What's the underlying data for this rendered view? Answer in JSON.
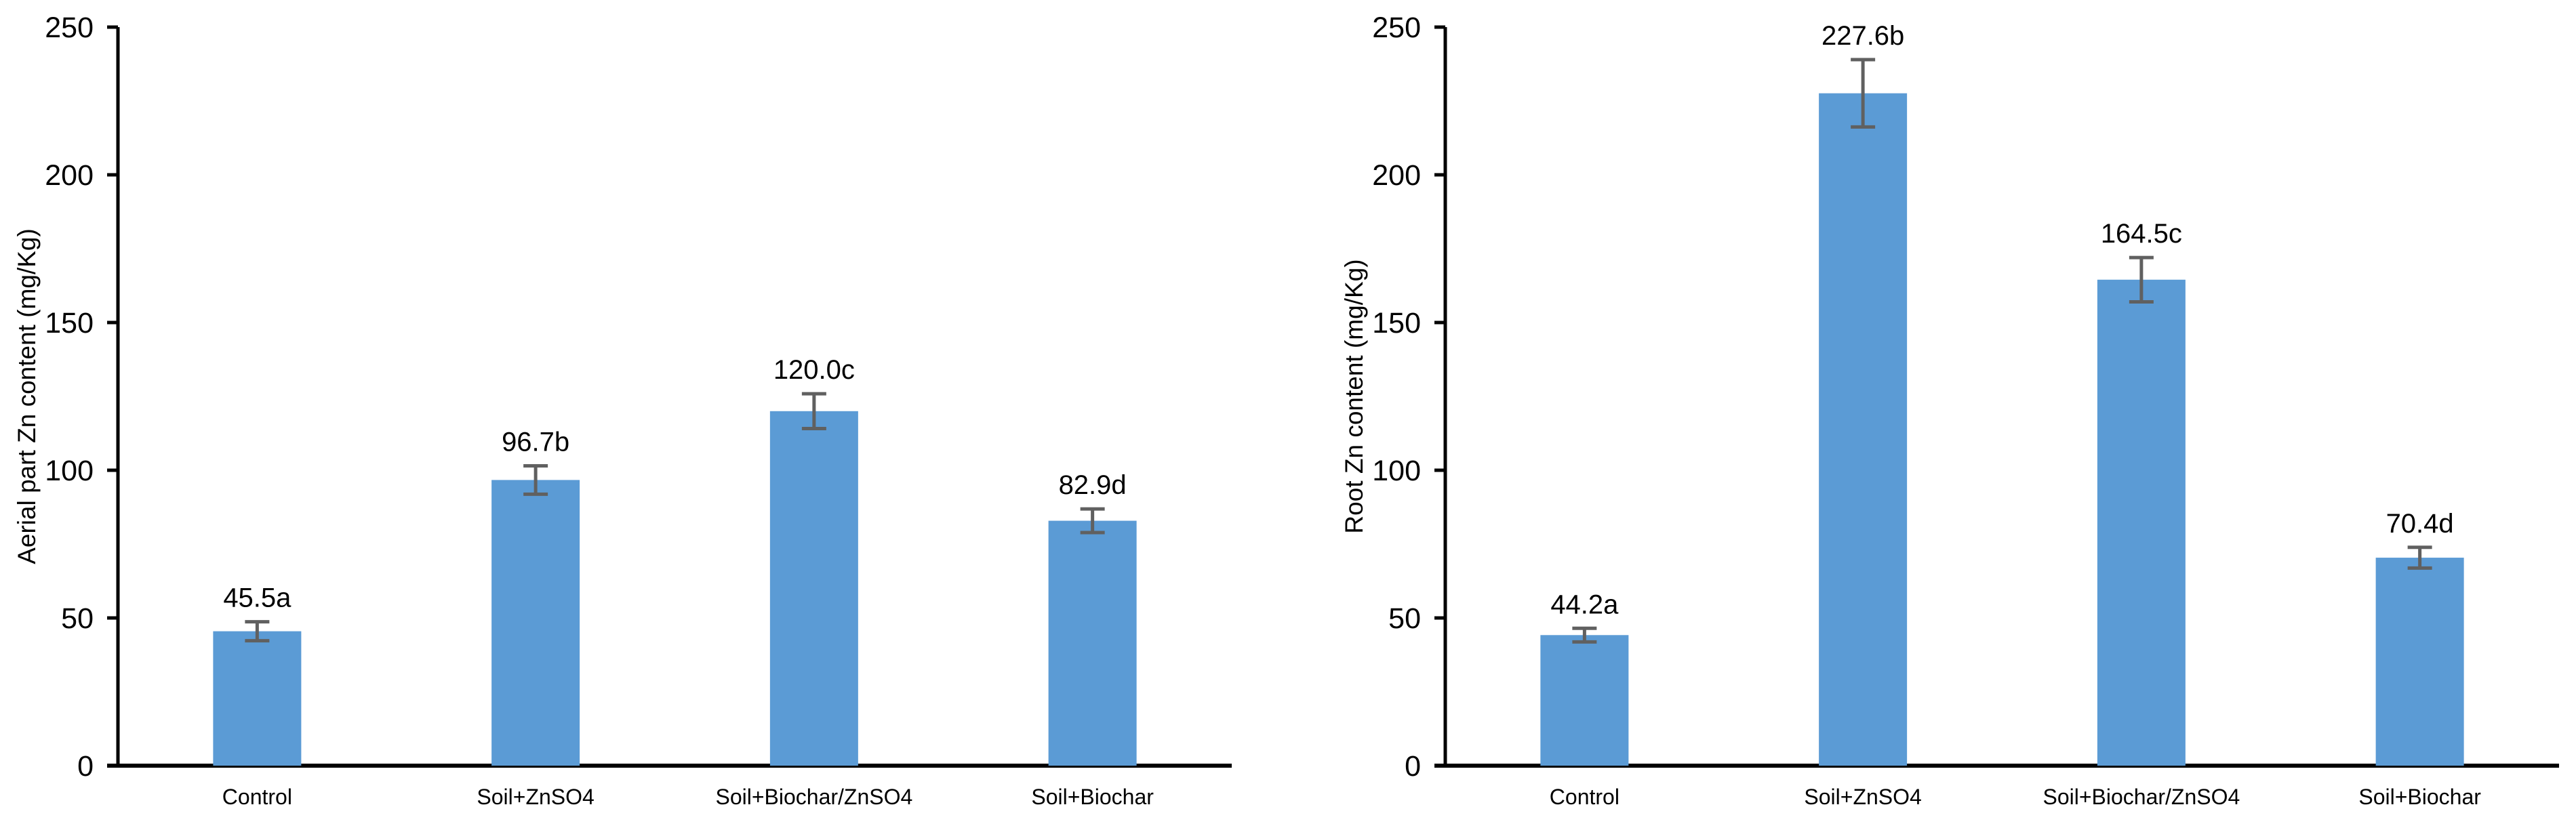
{
  "figure": {
    "background": "#ffffff",
    "description": "Two vertical bar charts with error bars showing Zn content by soil treatment"
  },
  "colors": {
    "bar": "#5B9BD5",
    "error_bar": "#606060",
    "axis": "#000000",
    "text": "#000000",
    "background": "#ffffff"
  },
  "chart_data": [
    {
      "id": "aerial-zn",
      "type": "bar",
      "title": "",
      "xlabel": "",
      "ylabel": "Aerial part Zn content (mg/Kg)",
      "categories": [
        "Control",
        "Soil+ZnSO4",
        "Soil+Biochar/ZnSO4",
        "Soil+Biochar"
      ],
      "values": [
        45.5,
        96.7,
        120.0,
        82.9
      ],
      "errors": [
        3.2,
        4.8,
        5.9,
        4.0
      ],
      "data_labels": [
        "45.5a",
        "96.7b",
        "120.0c",
        "82.9d"
      ],
      "ylim": [
        0,
        250
      ],
      "yticks": [
        0,
        50,
        100,
        150,
        200,
        250
      ],
      "grid": false,
      "legend": "none"
    },
    {
      "id": "root-zn",
      "type": "bar",
      "title": "",
      "xlabel": "",
      "ylabel": "Root Zn content (mg/Kg)",
      "categories": [
        "Control",
        "Soil+ZnSO4",
        "Soil+Biochar/ZnSO4",
        "Soil+Biochar"
      ],
      "values": [
        44.2,
        227.6,
        164.5,
        70.4
      ],
      "errors": [
        2.3,
        11.4,
        7.5,
        3.5
      ],
      "data_labels": [
        "44.2a",
        "227.6b",
        "164.5c",
        "70.4d"
      ],
      "ylim": [
        0,
        250
      ],
      "yticks": [
        0,
        50,
        100,
        150,
        200,
        250
      ],
      "grid": false,
      "legend": "none"
    }
  ]
}
